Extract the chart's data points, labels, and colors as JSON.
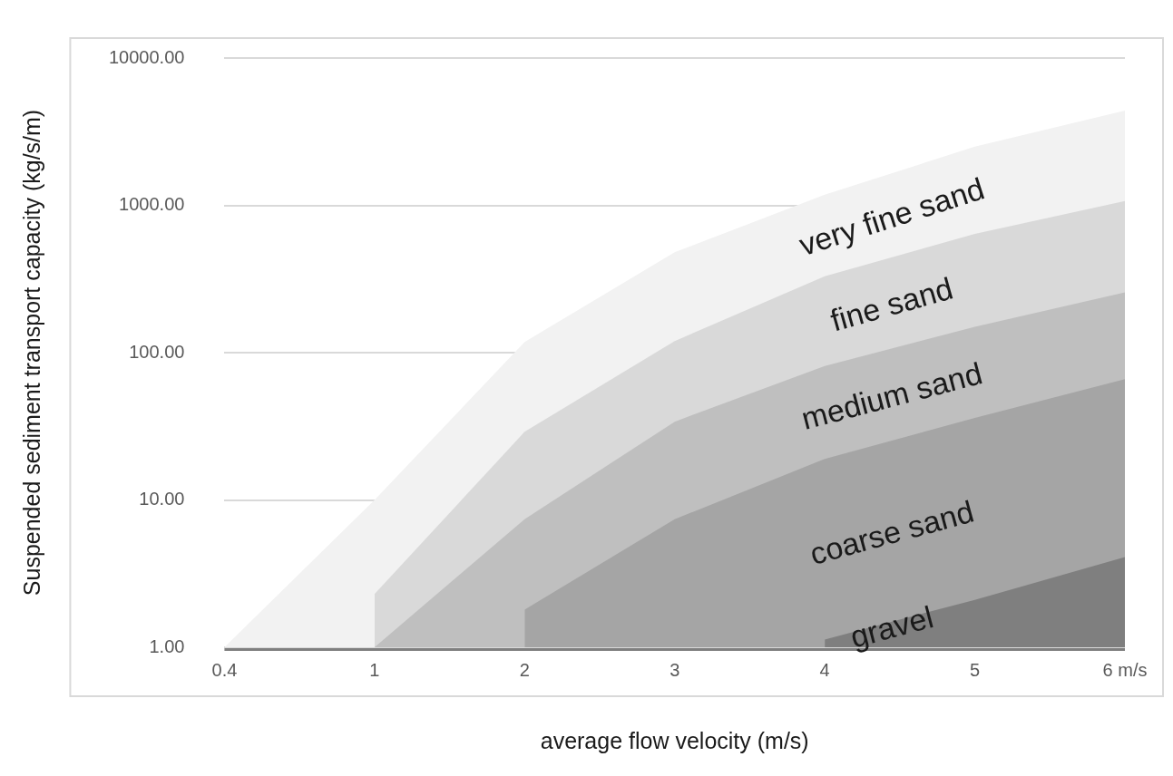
{
  "chart_data": {
    "type": "area",
    "xlabel": "average flow velocity (m/s)",
    "ylabel": "Suspended sediment transport capacity (kg/s/m)",
    "categories": [
      "0.4",
      "1",
      "2",
      "3",
      "4",
      "5",
      "6 m/s"
    ],
    "log": "y",
    "ylim": [
      1,
      10000
    ],
    "yticks": [
      {
        "value": 1,
        "label": "1.00"
      },
      {
        "value": 10,
        "label": "10.00"
      },
      {
        "value": 100,
        "label": "100.00"
      },
      {
        "value": 1000,
        "label": "1000.00"
      },
      {
        "value": 10000,
        "label": "10000.00"
      }
    ],
    "grid": "y",
    "legend": false,
    "series": [
      {
        "name": "very fine sand",
        "color": "#f2f2f2",
        "values": [
          1,
          10,
          118,
          480,
          1180,
          2500,
          4400
        ]
      },
      {
        "name": "fine sand",
        "color": "#d9d9d9",
        "values": [
          null,
          2.3,
          29,
          120,
          330,
          640,
          1070
        ]
      },
      {
        "name": "medium sand",
        "color": "#bfbfbf",
        "values": [
          null,
          1,
          7.4,
          34,
          81,
          150,
          257
        ]
      },
      {
        "name": "coarse sand",
        "color": "#a5a5a5",
        "values": [
          null,
          null,
          1.8,
          7.4,
          19,
          36,
          66
        ]
      },
      {
        "name": "gravel",
        "color": "#7f7f7f",
        "values": [
          null,
          null,
          null,
          null,
          1.13,
          2.1,
          4.1
        ]
      }
    ]
  }
}
